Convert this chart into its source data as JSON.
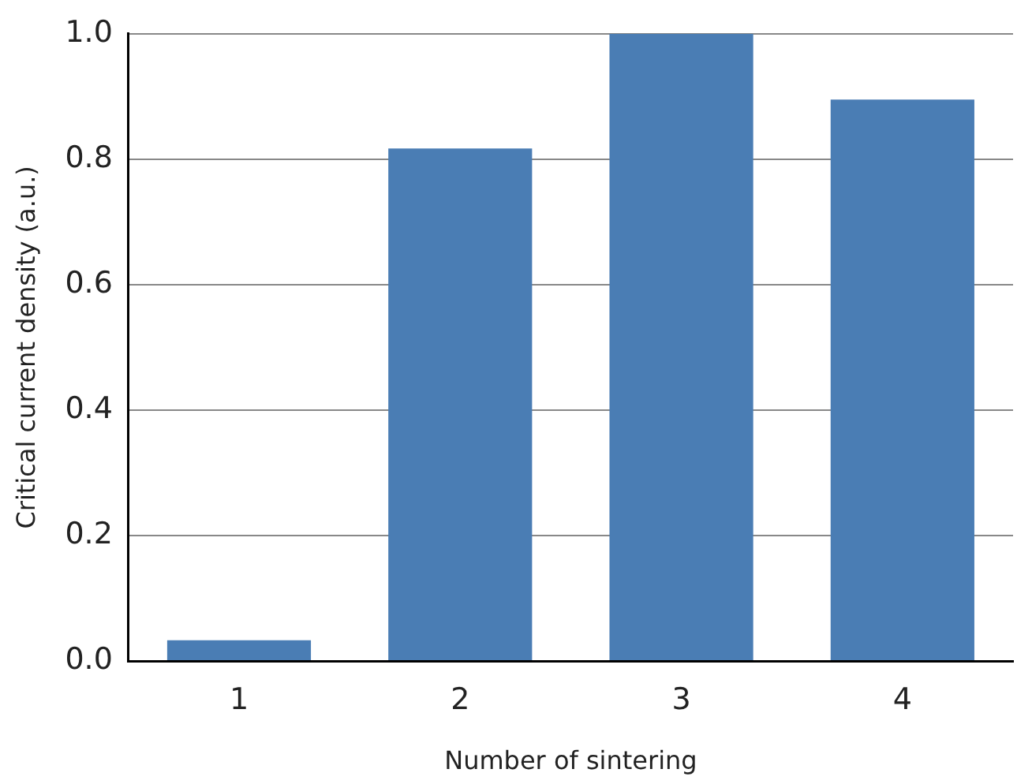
{
  "chart_data": {
    "type": "bar",
    "xlabel": "Number of sintering",
    "ylabel": "Critical current density (a.u.)",
    "categories": [
      "1",
      "2",
      "3",
      "4"
    ],
    "values": [
      0.033,
      0.817,
      1.0,
      0.895
    ],
    "color": "#4a7db4",
    "ylim": [
      0,
      1.0
    ],
    "yticks": [
      {
        "value": 0,
        "label": "0.0"
      },
      {
        "value": 0.2,
        "label": "0.2"
      },
      {
        "value": 0.4,
        "label": "0.4"
      },
      {
        "value": 0.6,
        "label": "0.6"
      },
      {
        "value": 0.8,
        "label": "0.8"
      },
      {
        "value": 1.0,
        "label": "1.0"
      }
    ],
    "grid": "y"
  }
}
